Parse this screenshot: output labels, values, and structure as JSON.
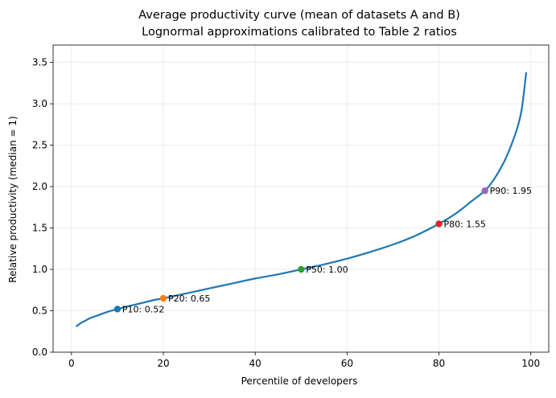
{
  "chart_data": {
    "type": "line",
    "title": "Average productivity curve (mean of datasets A and B)",
    "subtitle": "Lognormal approximations calibrated to Table 2 ratios",
    "xlabel": "Percentile of developers",
    "ylabel": "Relative productivity (median = 1)",
    "xlim": [
      -4.0,
      103.9
    ],
    "ylim": [
      0.0,
      3.71
    ],
    "xticks": [
      0,
      20,
      40,
      60,
      80,
      100
    ],
    "yticks": [
      0.0,
      0.5,
      1.0,
      1.5,
      2.0,
      2.5,
      3.0,
      3.5
    ],
    "xtick_labels": [
      "0",
      "20",
      "40",
      "60",
      "80",
      "100"
    ],
    "ytick_labels": [
      "0.0",
      "0.5",
      "1.0",
      "1.5",
      "2.0",
      "2.5",
      "3.0",
      "3.5"
    ],
    "grid": true,
    "legend": "none",
    "series": [
      {
        "color": "#1f77b4",
        "x": [
          1,
          2,
          3,
          4,
          5,
          6,
          8,
          10,
          12,
          15,
          18,
          20,
          25,
          30,
          35,
          40,
          45,
          50,
          55,
          60,
          65,
          70,
          75,
          80,
          83,
          85,
          87,
          90,
          92,
          94,
          95,
          96,
          97,
          98,
          99
        ],
        "y": [
          0.31,
          0.35,
          0.38,
          0.41,
          0.43,
          0.45,
          0.49,
          0.52,
          0.55,
          0.59,
          0.63,
          0.65,
          0.71,
          0.77,
          0.83,
          0.89,
          0.94,
          1.0,
          1.06,
          1.13,
          1.21,
          1.3,
          1.41,
          1.55,
          1.65,
          1.73,
          1.82,
          1.95,
          2.09,
          2.28,
          2.4,
          2.54,
          2.7,
          2.93,
          3.38
        ]
      }
    ],
    "points": [
      {
        "x": 10,
        "y": 0.52,
        "label": "P10: 0.52",
        "color": "#1f77b4"
      },
      {
        "x": 20,
        "y": 0.65,
        "label": "P20: 0.65",
        "color": "#ff7f0e"
      },
      {
        "x": 50,
        "y": 1.0,
        "label": "P50: 1.00",
        "color": "#2ca02c"
      },
      {
        "x": 80,
        "y": 1.55,
        "label": "P80: 1.55",
        "color": "#d62728"
      },
      {
        "x": 90,
        "y": 1.95,
        "label": "P90: 1.95",
        "color": "#9467bd"
      }
    ]
  }
}
